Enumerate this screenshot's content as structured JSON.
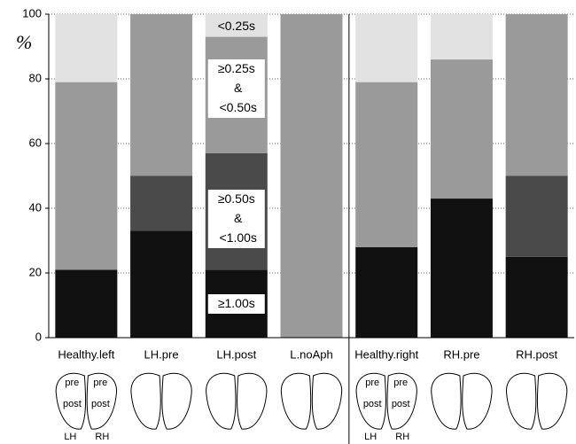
{
  "chart_data": {
    "type": "stacked_bar",
    "y_label": "%",
    "categories": [
      "Healthy.left",
      "LH.pre",
      "LH.post",
      "L.noAph",
      "Healthy.right",
      "RH.pre",
      "RH.post"
    ],
    "series": [
      {
        "name": "≥1.00s",
        "color": "#111111",
        "values": [
          21,
          33,
          21,
          0,
          28,
          43,
          25
        ]
      },
      {
        "name": "≥0.50s & <1.00s",
        "color": "#4a4a4a",
        "values": [
          0,
          17,
          36,
          0,
          0,
          0,
          25
        ]
      },
      {
        "name": "≥0.25s & <0.50s",
        "color": "#9a9a9a",
        "values": [
          58,
          50,
          36,
          100,
          51,
          43,
          50
        ]
      },
      {
        "name": "<0.25s",
        "color": "#e2e2e2",
        "values": [
          21,
          0,
          7,
          0,
          21,
          14,
          0
        ]
      }
    ],
    "ylim": [
      0,
      100
    ],
    "yticks": [
      0,
      20,
      40,
      60,
      80,
      100
    ],
    "grid": true,
    "annotations": [
      "pre",
      "post",
      "LH",
      "RH"
    ]
  }
}
